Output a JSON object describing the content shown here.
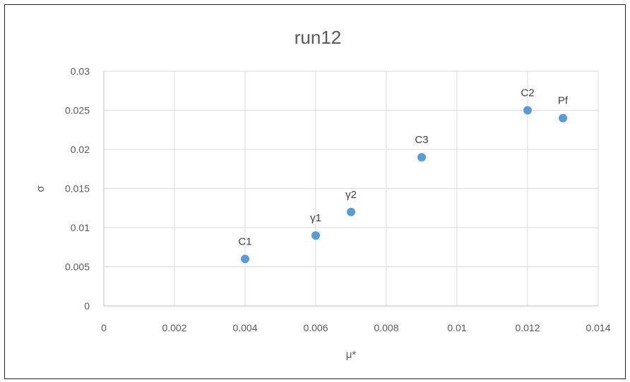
{
  "chart_data": {
    "type": "scatter",
    "title": "run12",
    "xlabel": "μ*",
    "ylabel": "σ",
    "xlim": [
      0,
      0.014
    ],
    "ylim": [
      0,
      0.03
    ],
    "x_ticks": [
      "0",
      "0.002",
      "0.004",
      "0.006",
      "0.008",
      "0.01",
      "0.012",
      "0.014"
    ],
    "y_ticks": [
      "0",
      "0.005",
      "0.01",
      "0.015",
      "0.02",
      "0.025",
      "0.03"
    ],
    "grid": true,
    "legend": "none",
    "marker_color": "#5b9bd5",
    "points": [
      {
        "label": "C1",
        "x": 0.004,
        "y": 0.006
      },
      {
        "label": "γ1",
        "x": 0.006,
        "y": 0.009
      },
      {
        "label": "γ2",
        "x": 0.007,
        "y": 0.012
      },
      {
        "label": "C3",
        "x": 0.009,
        "y": 0.019
      },
      {
        "label": "C2",
        "x": 0.012,
        "y": 0.025
      },
      {
        "label": "Pf",
        "x": 0.013,
        "y": 0.024
      }
    ]
  }
}
